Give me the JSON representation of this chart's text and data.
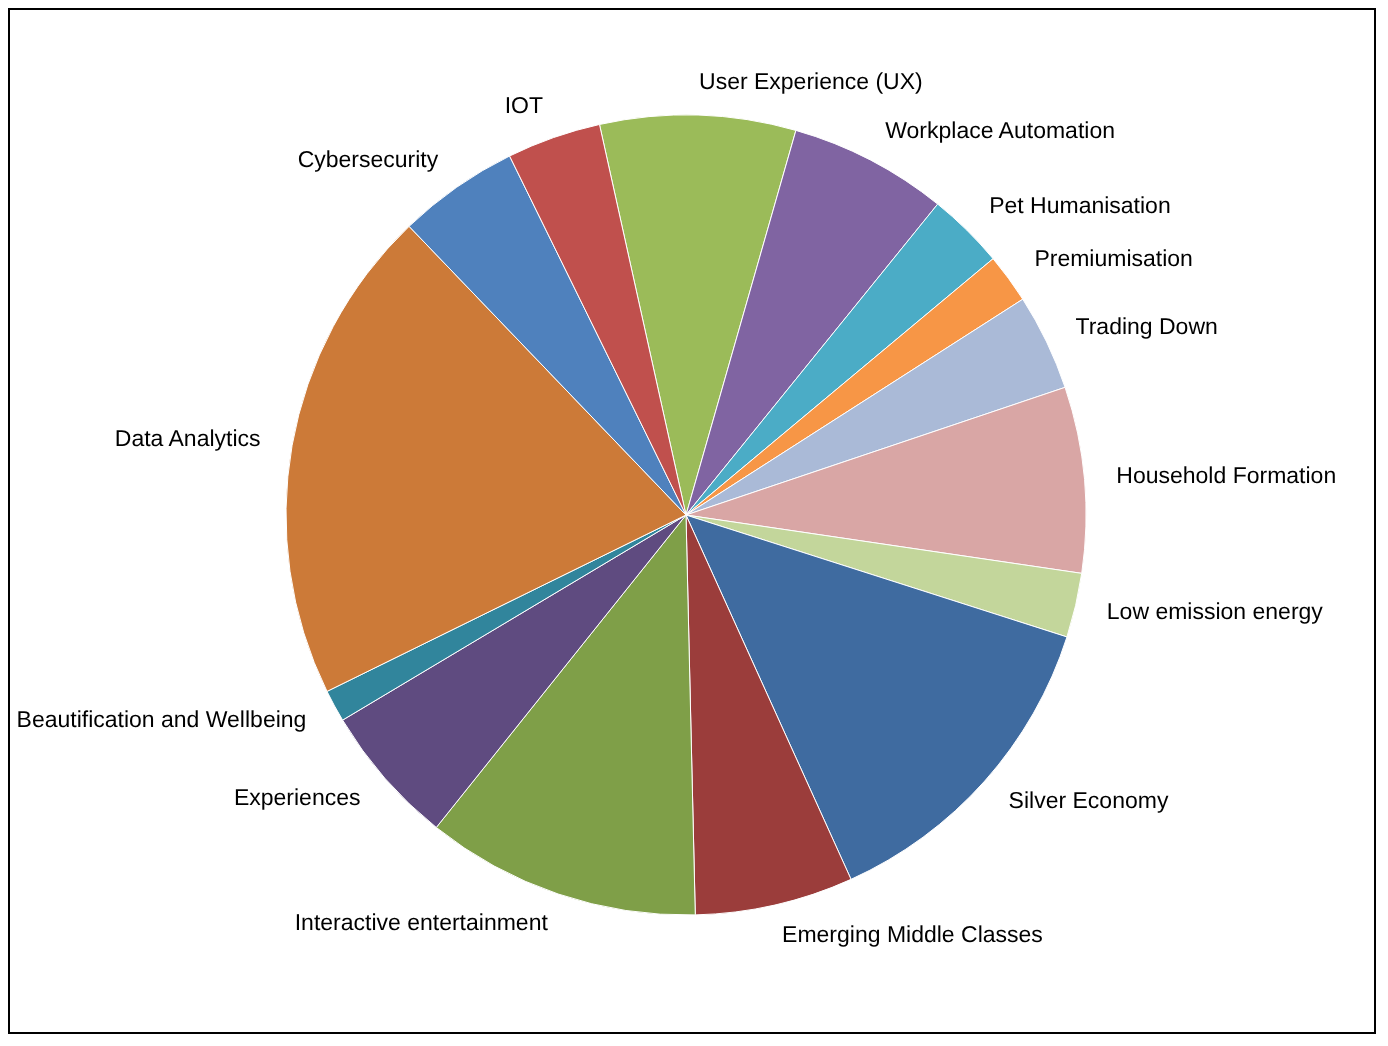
{
  "chart_data": {
    "type": "pie",
    "categories": [
      "User Experience (UX)",
      "Workplace Automation",
      "Pet Humanisation",
      "Premiumisation",
      "Trading Down",
      "Household Formation",
      "Low emission energy",
      "Silver Economy",
      "Emerging Middle Classes",
      "Interactive entertainment",
      "Experiences",
      "Beautification and Wellbeing",
      "Data Analytics",
      "Cybersecurity",
      "IOT"
    ],
    "values": [
      7.9,
      6.4,
      3.1,
      2,
      3.9,
      7.5,
      2.6,
      13.3,
      6.4,
      11.1,
      5.7,
      1.3,
      20.1,
      4.9,
      3.8
    ],
    "colors": [
      "#9bbb59",
      "#8064a2",
      "#4bacc6",
      "#f79646",
      "#aabad7",
      "#d9a6a5",
      "#c3d69b",
      "#3f6ba0",
      "#9b3d3b",
      "#7f9f48",
      "#5f4b80",
      "#31859c",
      "#cc7a38",
      "#4f81bd",
      "#c0504d"
    ],
    "legend": false
  }
}
